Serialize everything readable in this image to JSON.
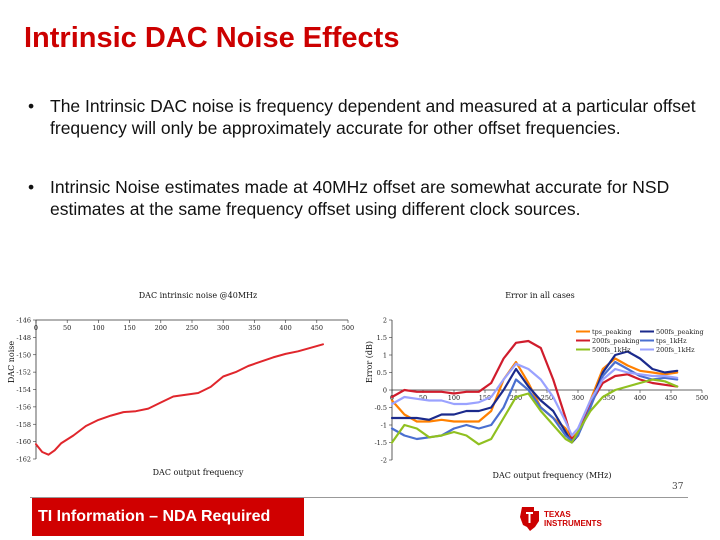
{
  "slide": {
    "title": "Intrinsic DAC Noise Effects",
    "bullets": [
      {
        "marker": "•",
        "text": "The Intrinsic DAC noise is frequency dependent and measured at a particular offset frequency will only be approximately accurate for other offset frequencies."
      },
      {
        "marker": "•",
        "text": "Intrinsic Noise estimates made at 40MHz offset are somewhat accurate for NSD estimates at the same frequency offset using different clock sources."
      }
    ],
    "footer": "TI Information – NDA Required",
    "page_number": "37",
    "logo": {
      "line1": "TEXAS",
      "line2": "INSTRUMENTS",
      "color": "#cc0000"
    }
  },
  "chart_data": [
    {
      "type": "line",
      "title": "DAC intrinsic noise @40MHz",
      "xlabel": "DAC output frequency",
      "ylabel": "DAC noise",
      "x_ticks": [
        "0",
        "50",
        "100",
        "150",
        "200",
        "250",
        "300",
        "350",
        "400",
        "450",
        "500"
      ],
      "y_ticks": [
        "-146",
        "-148",
        "-150",
        "-152",
        "-154",
        "-156",
        "-158",
        "-160",
        "-162"
      ],
      "xlim": [
        0,
        500
      ],
      "ylim": [
        -162,
        -146
      ],
      "series": [
        {
          "name": "DAC intrinsic noise",
          "color": "#e0262c",
          "x": [
            0,
            10,
            20,
            30,
            40,
            60,
            80,
            100,
            120,
            140,
            160,
            180,
            200,
            220,
            240,
            260,
            280,
            300,
            320,
            340,
            360,
            380,
            400,
            420,
            440,
            460
          ],
          "y": [
            -160.3,
            -161.2,
            -161.5,
            -161.0,
            -160.2,
            -159.3,
            -158.2,
            -157.5,
            -157.0,
            -156.6,
            -156.5,
            -156.2,
            -155.5,
            -154.8,
            -154.6,
            -154.4,
            -153.7,
            -152.5,
            -152.0,
            -151.3,
            -150.8,
            -150.3,
            -149.9,
            -149.6,
            -149.2,
            -148.8
          ]
        }
      ]
    },
    {
      "type": "line",
      "title": "Error in all cases",
      "xlabel": "DAC output frequency (MHz)",
      "ylabel": "Error (dB)",
      "x_ticks": [
        "0",
        "50",
        "100",
        "150",
        "200",
        "250",
        "300",
        "350",
        "400",
        "450",
        "500"
      ],
      "y_ticks": [
        "2",
        "1.5",
        "1",
        "0.5",
        "0",
        "-0.5",
        "-1",
        "-1.5",
        "-2"
      ],
      "xlim": [
        0,
        500
      ],
      "ylim": [
        -2,
        2
      ],
      "legend": [
        {
          "label": "tps_peaking",
          "color": "#ff8000"
        },
        {
          "label": "500fs_peaking",
          "color": "#1b2a8c"
        },
        {
          "label": "200fs_peaking",
          "color": "#d01c2c"
        },
        {
          "label": "tps_1kHz",
          "color": "#4a6fd0"
        },
        {
          "label": "500fs_1kHz",
          "color": "#90c020"
        },
        {
          "label": "200fs_1kHz",
          "color": "#9aa2ff"
        }
      ],
      "series": [
        {
          "name": "tps_peaking",
          "color": "#ff8000",
          "x": [
            0,
            20,
            40,
            60,
            80,
            100,
            120,
            140,
            160,
            180,
            200,
            220,
            240,
            260,
            280,
            290,
            300,
            320,
            340,
            360,
            380,
            400,
            420,
            440,
            460
          ],
          "y": [
            -0.3,
            -0.7,
            -0.9,
            -0.9,
            -0.85,
            -0.9,
            -0.9,
            -0.9,
            -0.6,
            0.3,
            0.8,
            0.2,
            -0.5,
            -0.8,
            -1.1,
            -1.4,
            -1.2,
            -0.3,
            0.6,
            0.9,
            0.7,
            0.55,
            0.5,
            0.45,
            0.5
          ]
        },
        {
          "name": "500fs_peaking",
          "color": "#1b2a8c",
          "x": [
            0,
            20,
            40,
            60,
            80,
            100,
            120,
            140,
            160,
            180,
            200,
            220,
            240,
            260,
            280,
            290,
            300,
            320,
            340,
            360,
            380,
            400,
            420,
            440,
            460
          ],
          "y": [
            -0.8,
            -0.8,
            -0.8,
            -0.85,
            -0.7,
            -0.7,
            -0.6,
            -0.6,
            -0.5,
            0.0,
            0.6,
            0.1,
            -0.3,
            -0.6,
            -1.2,
            -1.5,
            -1.3,
            -0.4,
            0.5,
            1.0,
            1.1,
            0.9,
            0.6,
            0.5,
            0.55
          ]
        },
        {
          "name": "200fs_peaking",
          "color": "#d01c2c",
          "x": [
            0,
            20,
            40,
            60,
            80,
            100,
            120,
            140,
            160,
            180,
            200,
            220,
            240,
            260,
            280,
            290,
            300,
            320,
            340,
            360,
            380,
            400,
            420,
            440,
            460
          ],
          "y": [
            -0.2,
            0.0,
            -0.05,
            -0.05,
            -0.05,
            -0.1,
            -0.05,
            -0.05,
            0.2,
            0.9,
            1.35,
            1.4,
            1.2,
            0.3,
            -0.8,
            -1.4,
            -1.25,
            -0.4,
            0.2,
            0.4,
            0.45,
            0.3,
            0.2,
            0.15,
            0.1
          ]
        },
        {
          "name": "tps_1kHz",
          "color": "#4a6fd0",
          "x": [
            0,
            20,
            40,
            60,
            80,
            100,
            120,
            140,
            160,
            180,
            200,
            220,
            240,
            260,
            280,
            290,
            300,
            320,
            340,
            360,
            380,
            400,
            420,
            440,
            460
          ],
          "y": [
            -1.1,
            -1.3,
            -1.4,
            -1.35,
            -1.3,
            -1.1,
            -1.0,
            -1.1,
            -1.0,
            -0.5,
            0.3,
            0.0,
            -0.5,
            -0.8,
            -1.3,
            -1.45,
            -1.3,
            -0.5,
            0.4,
            0.8,
            0.6,
            0.4,
            0.3,
            0.35,
            0.3
          ]
        },
        {
          "name": "500fs_1kHz",
          "color": "#90c020",
          "x": [
            0,
            20,
            40,
            60,
            80,
            100,
            120,
            140,
            160,
            180,
            200,
            220,
            240,
            260,
            280,
            290,
            300,
            320,
            340,
            360,
            380,
            400,
            420,
            440,
            460
          ],
          "y": [
            -1.5,
            -1.0,
            -1.1,
            -1.35,
            -1.3,
            -1.2,
            -1.3,
            -1.55,
            -1.4,
            -0.8,
            -0.2,
            -0.1,
            -0.6,
            -1.0,
            -1.4,
            -1.5,
            -1.2,
            -0.6,
            -0.2,
            0.0,
            0.1,
            0.2,
            0.3,
            0.25,
            0.1
          ]
        },
        {
          "name": "200fs_1kHz",
          "color": "#9aa2ff",
          "x": [
            0,
            20,
            40,
            60,
            80,
            100,
            120,
            140,
            160,
            180,
            200,
            220,
            240,
            260,
            280,
            290,
            300,
            320,
            340,
            360,
            380,
            400,
            420,
            440,
            460
          ],
          "y": [
            -0.4,
            -0.2,
            -0.25,
            -0.3,
            -0.3,
            -0.4,
            -0.4,
            -0.35,
            -0.2,
            0.3,
            0.75,
            0.6,
            0.3,
            -0.2,
            -0.9,
            -1.3,
            -1.1,
            -0.3,
            0.3,
            0.6,
            0.5,
            0.45,
            0.4,
            0.4,
            0.35
          ]
        }
      ]
    }
  ]
}
